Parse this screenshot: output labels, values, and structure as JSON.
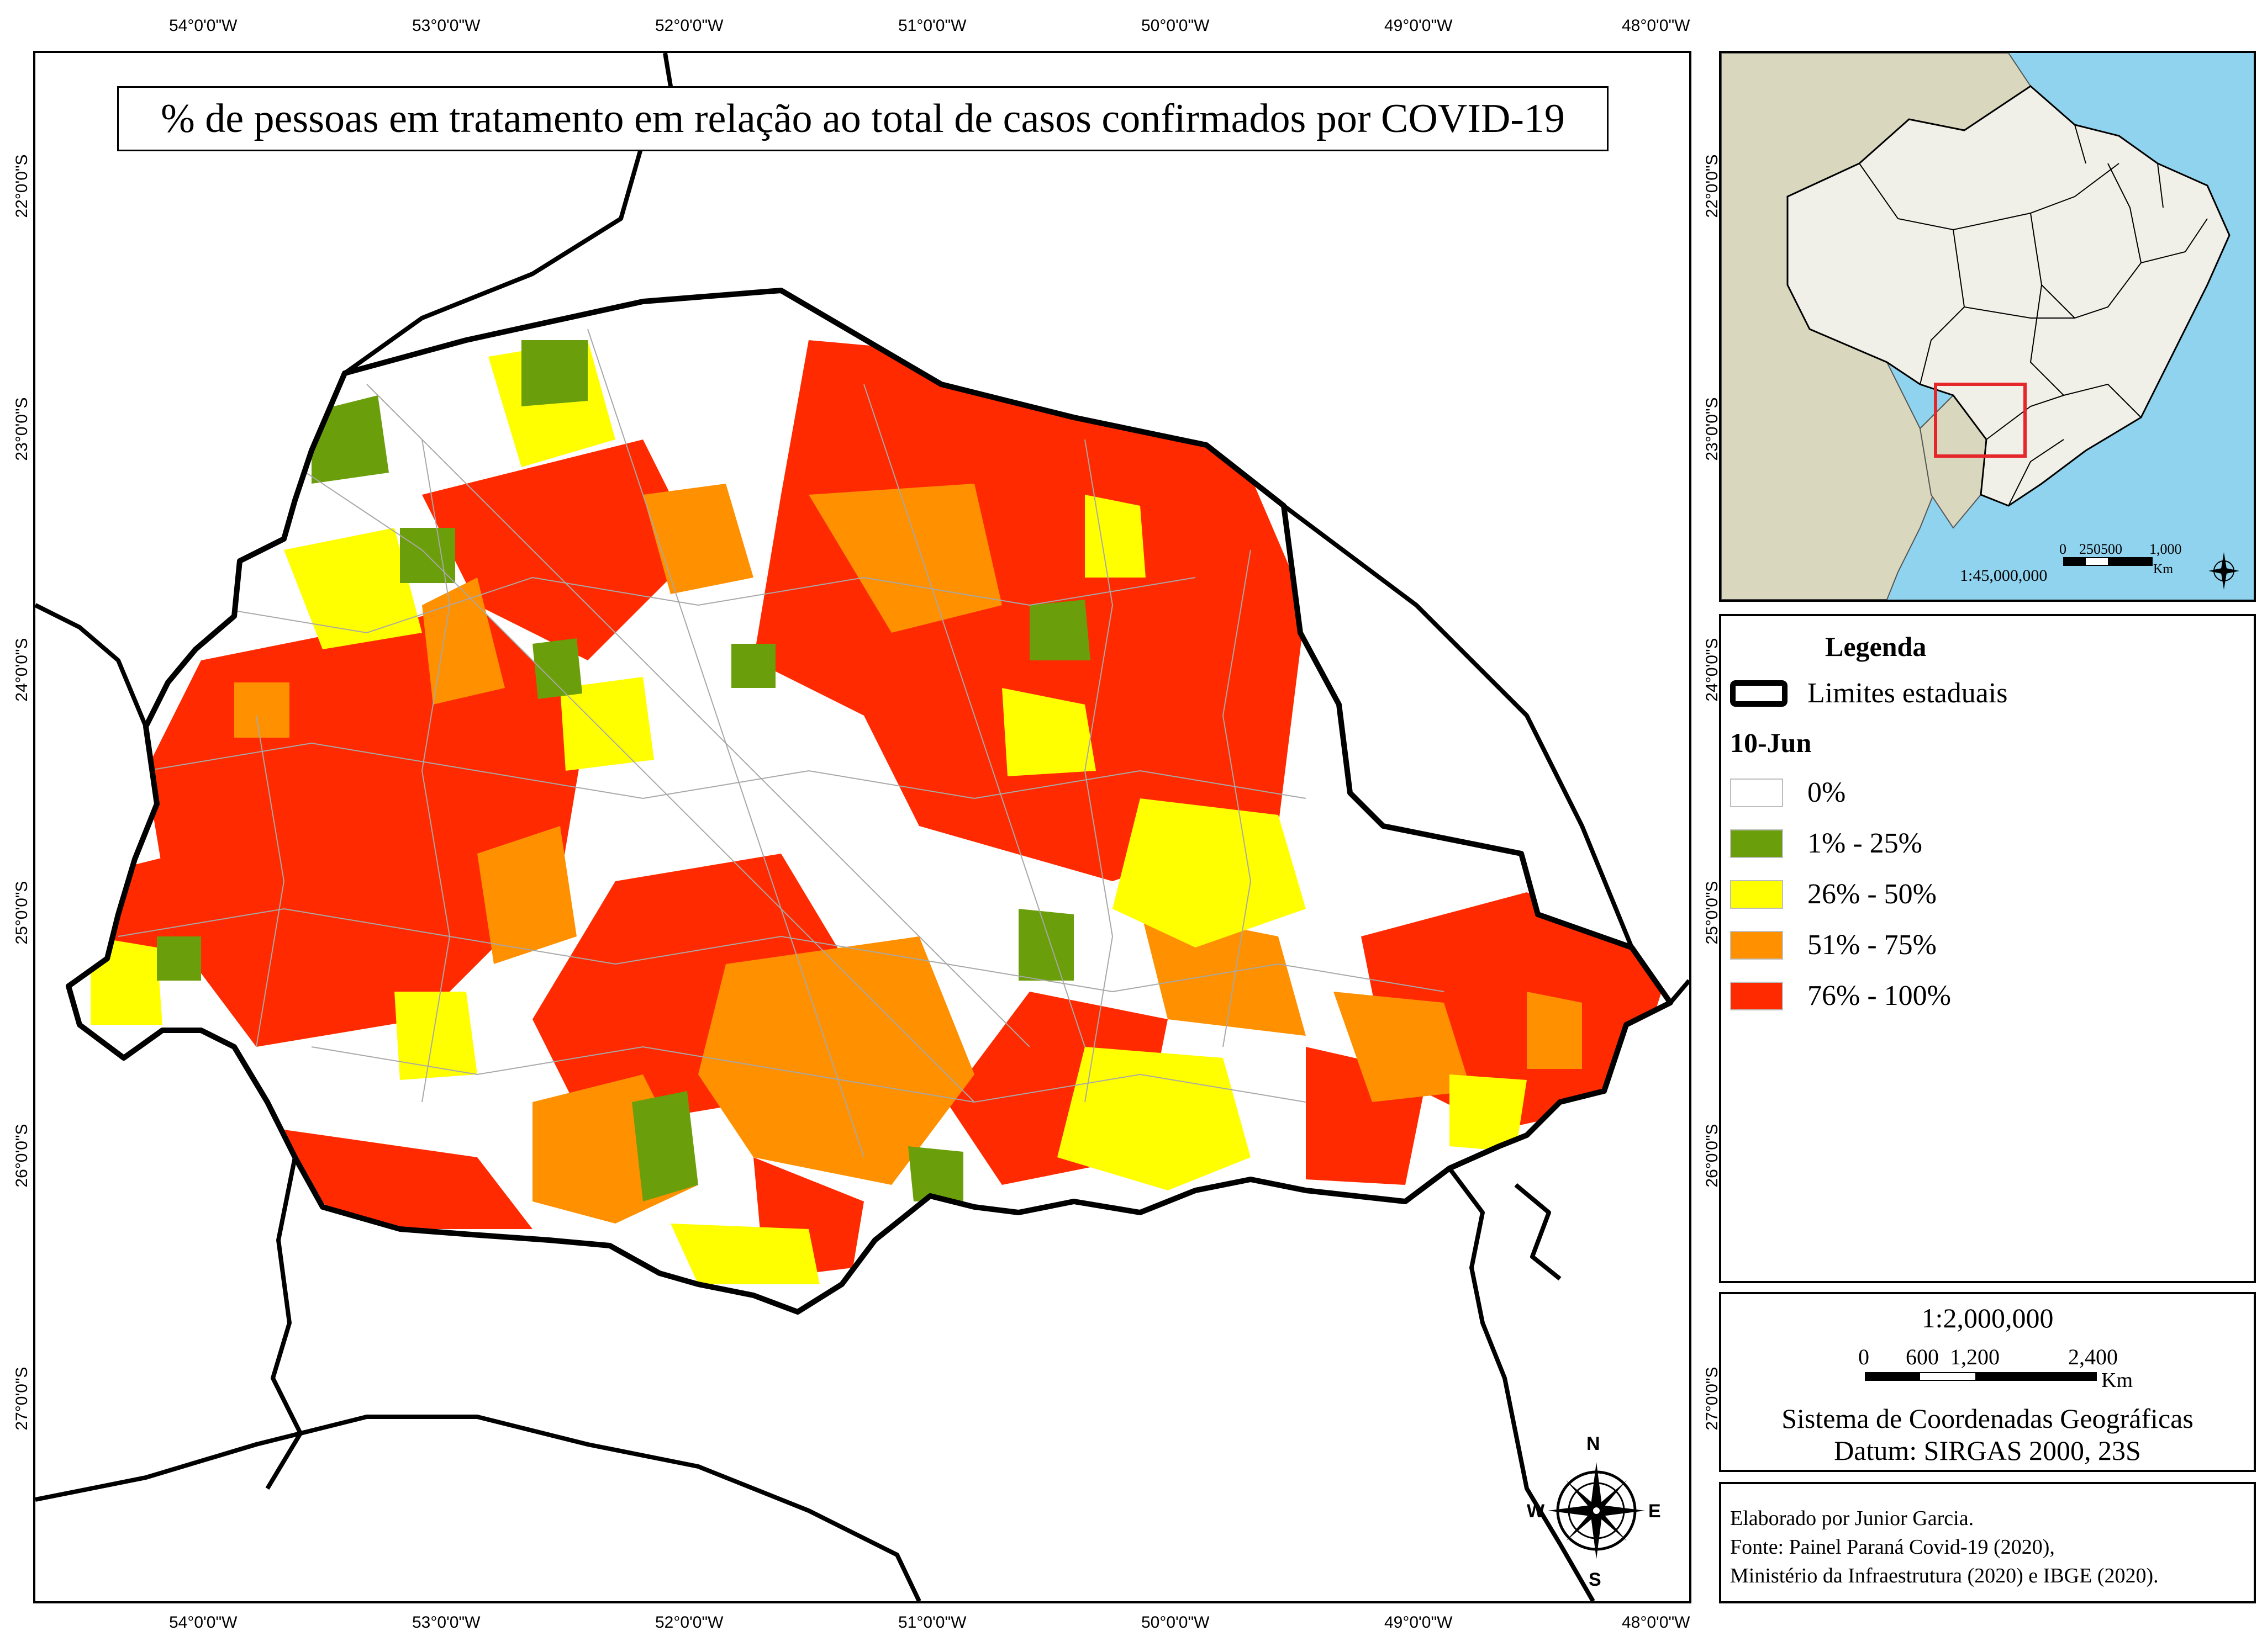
{
  "map": {
    "title": "% de pessoas em tratamento em relação ao total de casos confirmados por COVID-19",
    "longitude_labels": [
      "54°0'0\"W",
      "53°0'0\"W",
      "52°0'0\"W",
      "51°0'0\"W",
      "50°0'0\"W",
      "49°0'0\"W",
      "48°0'0\"W"
    ],
    "latitude_labels": [
      "22°0'0\"S",
      "23°0'0\"S",
      "24°0'0\"S",
      "25°0'0\"S",
      "26°0'0\"S",
      "27°0'0\"S"
    ],
    "compass": {
      "n": "N",
      "s": "S",
      "e": "E",
      "w": "W"
    }
  },
  "inset": {
    "scale": "1:45,000,000",
    "scale_numbers": [
      "0",
      "250500",
      "1,000"
    ],
    "scale_unit": "Km",
    "colors": {
      "ocean": "#8fd3ee",
      "brazil": "#f1f0e8",
      "neighbors": "#d9d7bd",
      "highlight": "#e5262b"
    }
  },
  "legend": {
    "title": "Legenda",
    "boundary_label": "Limites estaduais",
    "date_label": "10-Jun",
    "classes": [
      {
        "label": "0%",
        "color": "#ffffff"
      },
      {
        "label": "1% - 25%",
        "color": "#6a9e0a"
      },
      {
        "label": "26% - 50%",
        "color": "#ffff00"
      },
      {
        "label": "51% - 75%",
        "color": "#ff9000"
      },
      {
        "label": "76% - 100%",
        "color": "#ff2a00"
      }
    ]
  },
  "scale_box": {
    "scale": "1:2,000,000",
    "bar_numbers": [
      "0",
      "600",
      "1,200",
      "2,400"
    ],
    "unit": "Km",
    "crs": "Sistema de Coordenadas Geográficas",
    "datum": "Datum: SIRGAS 2000, 23S"
  },
  "credits": {
    "line1": "Elaborado por Junior Garcia.",
    "line2": "Fonte: Painel Paraná Covid-19 (2020),",
    "line3": "Ministério da Infraestrutura (2020) e IBGE (2020)."
  }
}
